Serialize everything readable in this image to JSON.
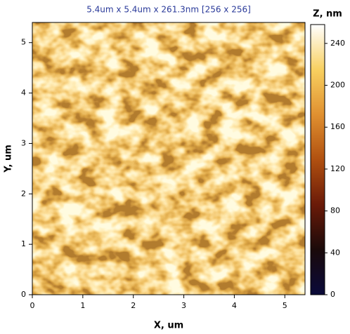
{
  "chart_data": {
    "type": "image",
    "title": "5.4um x 5.4um x 261.3nm [256 x 256]",
    "xlabel": "X, um",
    "ylabel": "Y, um",
    "xlim": [
      0,
      5.4
    ],
    "ylim": [
      0,
      5.4
    ],
    "xticks": [
      0,
      1,
      2,
      3,
      4,
      5
    ],
    "yticks": [
      0,
      1,
      2,
      3,
      4,
      5
    ],
    "colorbar": {
      "label": "Z, nm",
      "zlim": [
        0,
        258
      ],
      "ticks": [
        0,
        40,
        80,
        120,
        160,
        200,
        240
      ],
      "colormap": [
        "#0a0a3a",
        "#1a0a0a",
        "#6a1a08",
        "#b05010",
        "#e09030",
        "#f8d060",
        "#ffffff"
      ]
    }
  }
}
